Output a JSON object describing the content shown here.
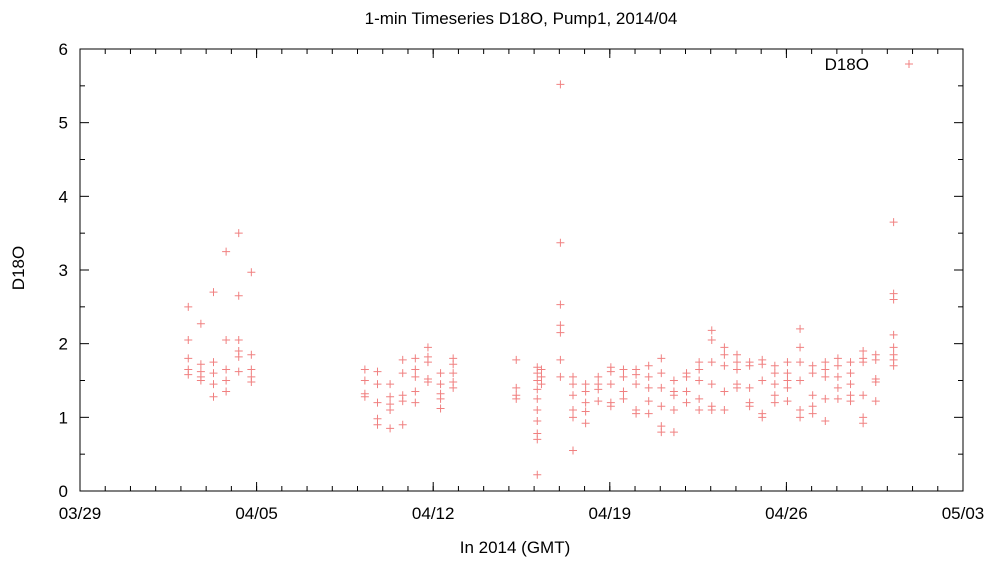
{
  "chart_data": {
    "type": "scatter",
    "title": "1-min Timeseries D18O, Pump1, 2014/04",
    "xlabel": "In 2014 (GMT)",
    "ylabel": "D18O",
    "x_unit": "date (2014, GMT)",
    "xlim": [
      "2014-03-29",
      "2014-05-03"
    ],
    "ylim": [
      0,
      6
    ],
    "x_ticks": [
      {
        "date": "2014-03-29",
        "label": "03/29"
      },
      {
        "date": "2014-04-05",
        "label": "04/05"
      },
      {
        "date": "2014-04-12",
        "label": "04/12"
      },
      {
        "date": "2014-04-19",
        "label": "04/19"
      },
      {
        "date": "2014-04-26",
        "label": "04/26"
      },
      {
        "date": "2014-05-03",
        "label": "05/03"
      }
    ],
    "y_ticks": [
      0,
      1,
      2,
      3,
      4,
      5,
      6
    ],
    "grid": false,
    "legend": {
      "position": "top-right",
      "entries": [
        "D18O"
      ]
    },
    "marker": "+",
    "color": "#f08080",
    "series": [
      {
        "name": "D18O",
        "points": [
          [
            "2014-04-02 07:00",
            2.5
          ],
          [
            "2014-04-02 07:00",
            2.05
          ],
          [
            "2014-04-02 07:00",
            1.8
          ],
          [
            "2014-04-02 07:00",
            1.65
          ],
          [
            "2014-04-02 07:00",
            1.58
          ],
          [
            "2014-04-02 19:00",
            2.27
          ],
          [
            "2014-04-02 19:00",
            1.72
          ],
          [
            "2014-04-02 19:00",
            1.62
          ],
          [
            "2014-04-02 19:00",
            1.55
          ],
          [
            "2014-04-02 19:00",
            1.5
          ],
          [
            "2014-04-03 07:00",
            2.7
          ],
          [
            "2014-04-03 07:00",
            1.75
          ],
          [
            "2014-04-03 07:00",
            1.6
          ],
          [
            "2014-04-03 07:00",
            1.45
          ],
          [
            "2014-04-03 07:00",
            1.28
          ],
          [
            "2014-04-03 19:00",
            3.25
          ],
          [
            "2014-04-03 19:00",
            2.05
          ],
          [
            "2014-04-03 19:00",
            1.65
          ],
          [
            "2014-04-03 19:00",
            1.5
          ],
          [
            "2014-04-03 19:00",
            1.35
          ],
          [
            "2014-04-04 07:00",
            3.5
          ],
          [
            "2014-04-04 07:00",
            2.65
          ],
          [
            "2014-04-04 07:00",
            2.05
          ],
          [
            "2014-04-04 07:00",
            1.9
          ],
          [
            "2014-04-04 07:00",
            1.82
          ],
          [
            "2014-04-04 07:00",
            1.62
          ],
          [
            "2014-04-04 19:00",
            2.97
          ],
          [
            "2014-04-04 19:00",
            1.85
          ],
          [
            "2014-04-04 19:00",
            1.65
          ],
          [
            "2014-04-04 19:00",
            1.55
          ],
          [
            "2014-04-04 19:00",
            1.48
          ],
          [
            "2014-04-09 07:00",
            1.65
          ],
          [
            "2014-04-09 07:00",
            1.5
          ],
          [
            "2014-04-09 07:00",
            1.32
          ],
          [
            "2014-04-09 07:00",
            1.28
          ],
          [
            "2014-04-09 19:00",
            1.62
          ],
          [
            "2014-04-09 19:00",
            1.45
          ],
          [
            "2014-04-09 19:00",
            1.2
          ],
          [
            "2014-04-09 19:00",
            0.98
          ],
          [
            "2014-04-09 19:00",
            0.9
          ],
          [
            "2014-04-10 07:00",
            1.45
          ],
          [
            "2014-04-10 07:00",
            1.28
          ],
          [
            "2014-04-10 07:00",
            1.18
          ],
          [
            "2014-04-10 07:00",
            1.1
          ],
          [
            "2014-04-10 07:00",
            0.85
          ],
          [
            "2014-04-10 19:00",
            1.78
          ],
          [
            "2014-04-10 19:00",
            1.6
          ],
          [
            "2014-04-10 19:00",
            1.3
          ],
          [
            "2014-04-10 19:00",
            1.22
          ],
          [
            "2014-04-10 19:00",
            0.9
          ],
          [
            "2014-04-11 07:00",
            1.8
          ],
          [
            "2014-04-11 07:00",
            1.65
          ],
          [
            "2014-04-11 07:00",
            1.55
          ],
          [
            "2014-04-11 07:00",
            1.35
          ],
          [
            "2014-04-11 07:00",
            1.2
          ],
          [
            "2014-04-11 19:00",
            1.95
          ],
          [
            "2014-04-11 19:00",
            1.82
          ],
          [
            "2014-04-11 19:00",
            1.75
          ],
          [
            "2014-04-11 19:00",
            1.52
          ],
          [
            "2014-04-11 19:00",
            1.48
          ],
          [
            "2014-04-12 07:00",
            1.6
          ],
          [
            "2014-04-12 07:00",
            1.45
          ],
          [
            "2014-04-12 07:00",
            1.32
          ],
          [
            "2014-04-12 07:00",
            1.25
          ],
          [
            "2014-04-12 07:00",
            1.12
          ],
          [
            "2014-04-12 19:00",
            1.8
          ],
          [
            "2014-04-12 19:00",
            1.72
          ],
          [
            "2014-04-12 19:00",
            1.6
          ],
          [
            "2014-04-12 19:00",
            1.48
          ],
          [
            "2014-04-12 19:00",
            1.4
          ],
          [
            "2014-04-15 07:00",
            1.78
          ],
          [
            "2014-04-15 07:00",
            1.4
          ],
          [
            "2014-04-15 07:00",
            1.3
          ],
          [
            "2014-04-15 07:00",
            1.25
          ],
          [
            "2014-04-16 03:00",
            1.68
          ],
          [
            "2014-04-16 03:00",
            1.6
          ],
          [
            "2014-04-16 03:00",
            1.5
          ],
          [
            "2014-04-16 03:00",
            1.38
          ],
          [
            "2014-04-16 03:00",
            1.25
          ],
          [
            "2014-04-16 03:00",
            1.1
          ],
          [
            "2014-04-16 03:00",
            0.95
          ],
          [
            "2014-04-16 03:00",
            0.78
          ],
          [
            "2014-04-16 03:00",
            0.7
          ],
          [
            "2014-04-16 03:00",
            0.22
          ],
          [
            "2014-04-16 07:00",
            1.65
          ],
          [
            "2014-04-16 07:00",
            1.55
          ],
          [
            "2014-04-16 07:00",
            1.45
          ],
          [
            "2014-04-17 01:00",
            5.52
          ],
          [
            "2014-04-17 01:00",
            3.37
          ],
          [
            "2014-04-17 01:00",
            2.53
          ],
          [
            "2014-04-17 01:00",
            2.25
          ],
          [
            "2014-04-17 01:00",
            2.15
          ],
          [
            "2014-04-17 01:00",
            1.78
          ],
          [
            "2014-04-17 01:00",
            1.55
          ],
          [
            "2014-04-17 13:00",
            1.55
          ],
          [
            "2014-04-17 13:00",
            1.45
          ],
          [
            "2014-04-17 13:00",
            1.3
          ],
          [
            "2014-04-17 13:00",
            1.1
          ],
          [
            "2014-04-17 13:00",
            1.0
          ],
          [
            "2014-04-17 13:00",
            0.55
          ],
          [
            "2014-04-18 01:00",
            1.45
          ],
          [
            "2014-04-18 01:00",
            1.35
          ],
          [
            "2014-04-18 01:00",
            1.2
          ],
          [
            "2014-04-18 01:00",
            1.08
          ],
          [
            "2014-04-18 01:00",
            0.92
          ],
          [
            "2014-04-18 13:00",
            1.55
          ],
          [
            "2014-04-18 13:00",
            1.45
          ],
          [
            "2014-04-18 13:00",
            1.38
          ],
          [
            "2014-04-18 13:00",
            1.22
          ],
          [
            "2014-04-19 01:00",
            1.68
          ],
          [
            "2014-04-19 01:00",
            1.62
          ],
          [
            "2014-04-19 01:00",
            1.45
          ],
          [
            "2014-04-19 01:00",
            1.2
          ],
          [
            "2014-04-19 01:00",
            1.15
          ],
          [
            "2014-04-19 13:00",
            1.65
          ],
          [
            "2014-04-19 13:00",
            1.55
          ],
          [
            "2014-04-19 13:00",
            1.35
          ],
          [
            "2014-04-19 13:00",
            1.25
          ],
          [
            "2014-04-20 01:00",
            1.65
          ],
          [
            "2014-04-20 01:00",
            1.58
          ],
          [
            "2014-04-20 01:00",
            1.45
          ],
          [
            "2014-04-20 01:00",
            1.1
          ],
          [
            "2014-04-20 01:00",
            1.05
          ],
          [
            "2014-04-20 13:00",
            1.7
          ],
          [
            "2014-04-20 13:00",
            1.55
          ],
          [
            "2014-04-20 13:00",
            1.4
          ],
          [
            "2014-04-20 13:00",
            1.22
          ],
          [
            "2014-04-20 13:00",
            1.05
          ],
          [
            "2014-04-21 01:00",
            1.8
          ],
          [
            "2014-04-21 01:00",
            1.6
          ],
          [
            "2014-04-21 01:00",
            1.4
          ],
          [
            "2014-04-21 01:00",
            1.15
          ],
          [
            "2014-04-21 01:00",
            0.88
          ],
          [
            "2014-04-21 01:00",
            0.8
          ],
          [
            "2014-04-21 13:00",
            1.5
          ],
          [
            "2014-04-21 13:00",
            1.35
          ],
          [
            "2014-04-21 13:00",
            1.3
          ],
          [
            "2014-04-21 13:00",
            1.1
          ],
          [
            "2014-04-21 13:00",
            0.8
          ],
          [
            "2014-04-22 01:00",
            1.6
          ],
          [
            "2014-04-22 01:00",
            1.55
          ],
          [
            "2014-04-22 01:00",
            1.35
          ],
          [
            "2014-04-22 01:00",
            1.2
          ],
          [
            "2014-04-22 13:00",
            1.75
          ],
          [
            "2014-04-22 13:00",
            1.65
          ],
          [
            "2014-04-22 13:00",
            1.5
          ],
          [
            "2014-04-22 13:00",
            1.25
          ],
          [
            "2014-04-22 13:00",
            1.1
          ],
          [
            "2014-04-23 01:00",
            2.18
          ],
          [
            "2014-04-23 01:00",
            2.05
          ],
          [
            "2014-04-23 01:00",
            1.75
          ],
          [
            "2014-04-23 01:00",
            1.45
          ],
          [
            "2014-04-23 01:00",
            1.15
          ],
          [
            "2014-04-23 01:00",
            1.1
          ],
          [
            "2014-04-23 13:00",
            1.95
          ],
          [
            "2014-04-23 13:00",
            1.85
          ],
          [
            "2014-04-23 13:00",
            1.7
          ],
          [
            "2014-04-23 13:00",
            1.35
          ],
          [
            "2014-04-23 13:00",
            1.1
          ],
          [
            "2014-04-24 01:00",
            1.85
          ],
          [
            "2014-04-24 01:00",
            1.75
          ],
          [
            "2014-04-24 01:00",
            1.65
          ],
          [
            "2014-04-24 01:00",
            1.45
          ],
          [
            "2014-04-24 01:00",
            1.4
          ],
          [
            "2014-04-24 13:00",
            1.75
          ],
          [
            "2014-04-24 13:00",
            1.7
          ],
          [
            "2014-04-24 13:00",
            1.4
          ],
          [
            "2014-04-24 13:00",
            1.2
          ],
          [
            "2014-04-24 13:00",
            1.15
          ],
          [
            "2014-04-25 01:00",
            1.78
          ],
          [
            "2014-04-25 01:00",
            1.72
          ],
          [
            "2014-04-25 01:00",
            1.5
          ],
          [
            "2014-04-25 01:00",
            1.05
          ],
          [
            "2014-04-25 01:00",
            1.0
          ],
          [
            "2014-04-25 13:00",
            1.7
          ],
          [
            "2014-04-25 13:00",
            1.6
          ],
          [
            "2014-04-25 13:00",
            1.45
          ],
          [
            "2014-04-25 13:00",
            1.3
          ],
          [
            "2014-04-25 13:00",
            1.2
          ],
          [
            "2014-04-26 01:00",
            1.75
          ],
          [
            "2014-04-26 01:00",
            1.6
          ],
          [
            "2014-04-26 01:00",
            1.5
          ],
          [
            "2014-04-26 01:00",
            1.4
          ],
          [
            "2014-04-26 01:00",
            1.22
          ],
          [
            "2014-04-26 13:00",
            2.2
          ],
          [
            "2014-04-26 13:00",
            1.95
          ],
          [
            "2014-04-26 13:00",
            1.75
          ],
          [
            "2014-04-26 13:00",
            1.5
          ],
          [
            "2014-04-26 13:00",
            1.1
          ],
          [
            "2014-04-26 13:00",
            1.0
          ],
          [
            "2014-04-27 01:00",
            1.7
          ],
          [
            "2014-04-27 01:00",
            1.6
          ],
          [
            "2014-04-27 01:00",
            1.3
          ],
          [
            "2014-04-27 01:00",
            1.15
          ],
          [
            "2014-04-27 01:00",
            1.05
          ],
          [
            "2014-04-27 13:00",
            1.75
          ],
          [
            "2014-04-27 13:00",
            1.65
          ],
          [
            "2014-04-27 13:00",
            1.55
          ],
          [
            "2014-04-27 13:00",
            1.25
          ],
          [
            "2014-04-27 13:00",
            0.95
          ],
          [
            "2014-04-28 01:00",
            1.8
          ],
          [
            "2014-04-28 01:00",
            1.7
          ],
          [
            "2014-04-28 01:00",
            1.55
          ],
          [
            "2014-04-28 01:00",
            1.4
          ],
          [
            "2014-04-28 01:00",
            1.25
          ],
          [
            "2014-04-28 13:00",
            1.75
          ],
          [
            "2014-04-28 13:00",
            1.6
          ],
          [
            "2014-04-28 13:00",
            1.45
          ],
          [
            "2014-04-28 13:00",
            1.3
          ],
          [
            "2014-04-28 13:00",
            1.22
          ],
          [
            "2014-04-29 01:00",
            1.9
          ],
          [
            "2014-04-29 01:00",
            1.8
          ],
          [
            "2014-04-29 01:00",
            1.75
          ],
          [
            "2014-04-29 01:00",
            1.3
          ],
          [
            "2014-04-29 01:00",
            1.0
          ],
          [
            "2014-04-29 01:00",
            0.92
          ],
          [
            "2014-04-29 13:00",
            1.85
          ],
          [
            "2014-04-29 13:00",
            1.78
          ],
          [
            "2014-04-29 13:00",
            1.52
          ],
          [
            "2014-04-29 13:00",
            1.48
          ],
          [
            "2014-04-29 13:00",
            1.22
          ],
          [
            "2014-04-30 06:00",
            3.65
          ],
          [
            "2014-04-30 06:00",
            2.68
          ],
          [
            "2014-04-30 06:00",
            2.6
          ],
          [
            "2014-04-30 06:00",
            2.12
          ],
          [
            "2014-04-30 06:00",
            1.95
          ],
          [
            "2014-04-30 06:00",
            1.85
          ],
          [
            "2014-04-30 06:00",
            1.78
          ],
          [
            "2014-04-30 06:00",
            1.7
          ]
        ]
      }
    ]
  }
}
